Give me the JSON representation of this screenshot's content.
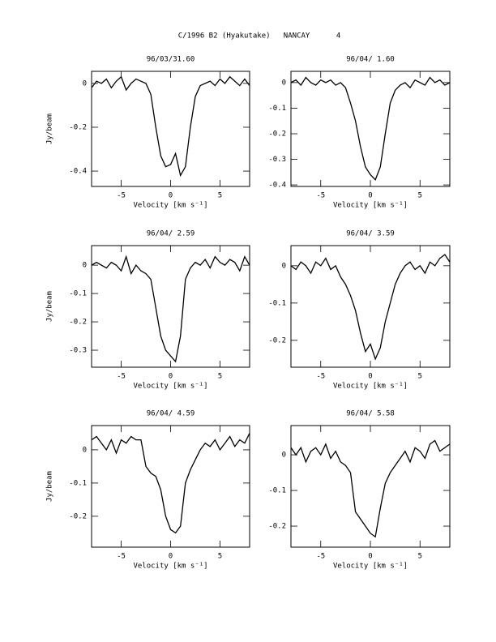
{
  "title": "C/1996 B2 (Hyakutake)   NANCAY      4",
  "chart_data": [
    {
      "type": "line",
      "title": "96/03/31.60",
      "xlabel": "Velocity [km s⁻¹]",
      "ylabel": "Jy/beam",
      "x": [
        -8,
        -7.5,
        -7,
        -6.5,
        -6,
        -5.5,
        -5,
        -4.5,
        -4,
        -3.5,
        -3,
        -2.5,
        -2,
        -1.5,
        -1,
        -0.5,
        0,
        0.5,
        1,
        1.5,
        2,
        2.5,
        3,
        3.5,
        4,
        4.5,
        5,
        5.5,
        6,
        6.5,
        7,
        7.5,
        8
      ],
      "values": [
        -0.02,
        0.01,
        0.0,
        0.02,
        -0.02,
        0.01,
        0.03,
        -0.03,
        0.0,
        0.02,
        0.01,
        0.0,
        -0.05,
        -0.2,
        -0.33,
        -0.38,
        -0.37,
        -0.32,
        -0.42,
        -0.38,
        -0.2,
        -0.06,
        -0.01,
        0.0,
        0.01,
        -0.01,
        0.02,
        0.0,
        0.03,
        0.01,
        -0.01,
        0.02,
        -0.01
      ],
      "xlim": [
        -8,
        8
      ],
      "xticks": [
        -5,
        0,
        5
      ],
      "ylim": [
        -0.47,
        0.055
      ],
      "yticks": [
        -0.4,
        -0.2,
        0
      ],
      "color": "#000000"
    },
    {
      "type": "line",
      "title": "96/04/ 1.60",
      "xlabel": "Velocity [km s⁻¹]",
      "x": [
        -8,
        -7.5,
        -7,
        -6.5,
        -6,
        -5.5,
        -5,
        -4.5,
        -4,
        -3.5,
        -3,
        -2.5,
        -2,
        -1.5,
        -1,
        -0.5,
        0,
        0.5,
        1,
        1.5,
        2,
        2.5,
        3,
        3.5,
        4,
        4.5,
        5,
        5.5,
        6,
        6.5,
        7,
        7.5,
        8
      ],
      "values": [
        0.0,
        0.01,
        -0.01,
        0.02,
        0.0,
        -0.01,
        0.01,
        0.0,
        0.01,
        -0.01,
        0.0,
        -0.02,
        -0.08,
        -0.15,
        -0.25,
        -0.33,
        -0.36,
        -0.38,
        -0.33,
        -0.2,
        -0.08,
        -0.03,
        -0.01,
        0.0,
        -0.02,
        0.01,
        0.0,
        -0.01,
        0.02,
        0.0,
        0.01,
        -0.01,
        0.0
      ],
      "xlim": [
        -8,
        8
      ],
      "xticks": [
        -5,
        0,
        5
      ],
      "ylim": [
        -0.406,
        0.044
      ],
      "yticks": [
        -0.4,
        -0.3,
        -0.2,
        -0.1,
        0
      ],
      "color": "#000000"
    },
    {
      "type": "line",
      "title": "96/04/ 2.59",
      "xlabel": "Velocity [km s⁻¹]",
      "ylabel": "Jy/beam",
      "x": [
        -8,
        -7.5,
        -7,
        -6.5,
        -6,
        -5.5,
        -5,
        -4.5,
        -4,
        -3.5,
        -3,
        -2.5,
        -2,
        -1.5,
        -1,
        -0.5,
        0,
        0.5,
        1,
        1.5,
        2,
        2.5,
        3,
        3.5,
        4,
        4.5,
        5,
        5.5,
        6,
        6.5,
        7,
        7.5,
        8
      ],
      "values": [
        0.0,
        0.01,
        0.0,
        -0.01,
        0.01,
        0.0,
        -0.02,
        0.03,
        -0.03,
        0.0,
        -0.02,
        -0.03,
        -0.05,
        -0.15,
        -0.25,
        -0.3,
        -0.32,
        -0.34,
        -0.25,
        -0.05,
        -0.01,
        0.01,
        0.0,
        0.02,
        -0.01,
        0.03,
        0.01,
        0.0,
        0.02,
        0.01,
        -0.02,
        0.03,
        0.0
      ],
      "xlim": [
        -8,
        8
      ],
      "xticks": [
        -5,
        0,
        5
      ],
      "ylim": [
        -0.36,
        0.069
      ],
      "yticks": [
        -0.3,
        -0.2,
        -0.1,
        0
      ],
      "color": "#000000"
    },
    {
      "type": "line",
      "title": "96/04/ 3.59",
      "xlabel": "Velocity [km s⁻¹]",
      "x": [
        -8,
        -7.5,
        -7,
        -6.5,
        -6,
        -5.5,
        -5,
        -4.5,
        -4,
        -3.5,
        -3,
        -2.5,
        -2,
        -1.5,
        -1,
        -0.5,
        0,
        0.5,
        1,
        1.5,
        2,
        2.5,
        3,
        3.5,
        4,
        4.5,
        5,
        5.5,
        6,
        6.5,
        7,
        7.5,
        8
      ],
      "values": [
        0.0,
        -0.01,
        0.01,
        0.0,
        -0.02,
        0.01,
        0.0,
        0.02,
        -0.01,
        0.0,
        -0.03,
        -0.05,
        -0.08,
        -0.12,
        -0.18,
        -0.23,
        -0.21,
        -0.25,
        -0.22,
        -0.15,
        -0.1,
        -0.05,
        -0.02,
        0.0,
        0.01,
        -0.01,
        0.0,
        -0.02,
        0.01,
        0.0,
        0.02,
        0.03,
        0.01
      ],
      "xlim": [
        -8,
        8
      ],
      "xticks": [
        -5,
        0,
        5
      ],
      "ylim": [
        -0.272,
        0.054
      ],
      "yticks": [
        -0.2,
        -0.1,
        0
      ],
      "color": "#000000"
    },
    {
      "type": "line",
      "title": "96/04/ 4.59",
      "xlabel": "Velocity [km s⁻¹]",
      "ylabel": "Jy/beam",
      "x": [
        -8,
        -7.5,
        -7,
        -6.5,
        -6,
        -5.5,
        -5,
        -4.5,
        -4,
        -3.5,
        -3,
        -2.5,
        -2,
        -1.5,
        -1,
        -0.5,
        0,
        0.5,
        1,
        1.5,
        2,
        2.5,
        3,
        3.5,
        4,
        4.5,
        5,
        5.5,
        6,
        6.5,
        7,
        7.5,
        8
      ],
      "values": [
        0.03,
        0.04,
        0.02,
        0.0,
        0.03,
        -0.01,
        0.03,
        0.02,
        0.04,
        0.03,
        0.03,
        -0.05,
        -0.07,
        -0.08,
        -0.12,
        -0.2,
        -0.24,
        -0.25,
        -0.23,
        -0.1,
        -0.06,
        -0.03,
        0.0,
        0.02,
        0.01,
        0.03,
        0.0,
        0.02,
        0.04,
        0.01,
        0.03,
        0.02,
        0.05
      ],
      "xlim": [
        -8,
        8
      ],
      "xticks": [
        -5,
        0,
        5
      ],
      "ylim": [
        -0.293,
        0.073
      ],
      "yticks": [
        -0.2,
        -0.1,
        0
      ],
      "color": "#000000"
    },
    {
      "type": "line",
      "title": "96/04/ 5.58",
      "xlabel": "Velocity [km s⁻¹]",
      "x": [
        -8,
        -7.5,
        -7,
        -6.5,
        -6,
        -5.5,
        -5,
        -4.5,
        -4,
        -3.5,
        -3,
        -2.5,
        -2,
        -1.5,
        -1,
        -0.5,
        0,
        0.5,
        1,
        1.5,
        2,
        2.5,
        3,
        3.5,
        4,
        4.5,
        5,
        5.5,
        6,
        6.5,
        7,
        7.5,
        8
      ],
      "values": [
        0.02,
        0.0,
        0.02,
        -0.02,
        0.01,
        0.02,
        0.0,
        0.03,
        -0.01,
        0.01,
        -0.02,
        -0.03,
        -0.05,
        -0.16,
        -0.18,
        -0.2,
        -0.22,
        -0.23,
        -0.15,
        -0.08,
        -0.05,
        -0.03,
        -0.01,
        0.01,
        -0.02,
        0.02,
        0.01,
        -0.01,
        0.03,
        0.04,
        0.01,
        0.02,
        0.03
      ],
      "xlim": [
        -8,
        8
      ],
      "xticks": [
        -5,
        0,
        5
      ],
      "ylim": [
        -0.259,
        0.082
      ],
      "yticks": [
        -0.2,
        -0.1,
        0
      ],
      "color": "#000000"
    }
  ]
}
